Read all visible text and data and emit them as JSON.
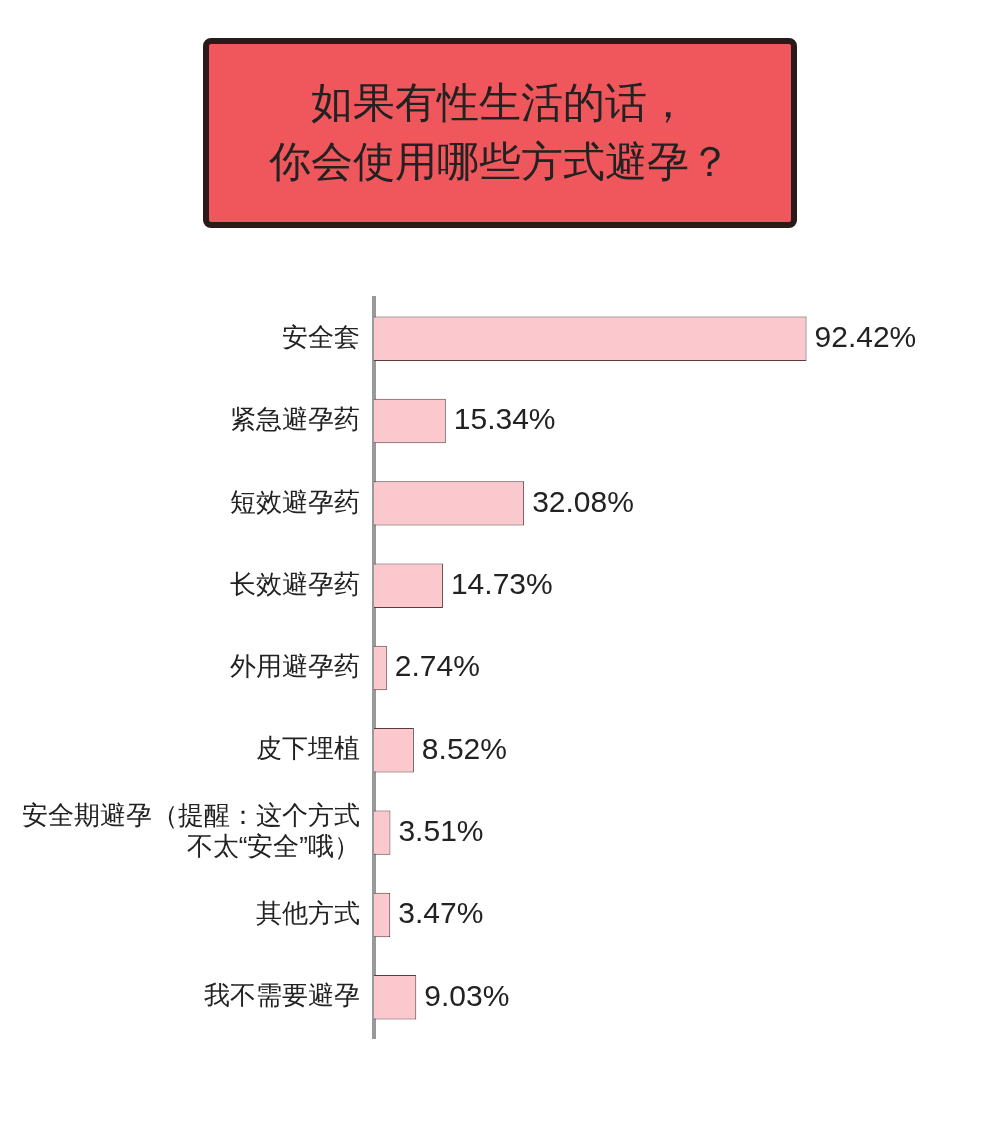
{
  "chart_data": {
    "type": "bar",
    "orientation": "horizontal",
    "title": "如果有性生活的话，你会使用哪些方式避孕？",
    "categories": [
      "安全套",
      "紧急避孕药",
      "短效避孕药",
      "长效避孕药",
      "外用避孕药",
      "皮下埋植",
      "安全期避孕（提醒：这个方式不太“安全”哦）",
      "其他方式",
      "我不需要避孕"
    ],
    "values": [
      92.42,
      15.34,
      32.08,
      14.73,
      2.74,
      8.52,
      3.51,
      3.47,
      9.03
    ],
    "value_labels": [
      "92.42%",
      "15.34%",
      "32.08%",
      "14.73%",
      "2.74%",
      "8.52%",
      "3.51%",
      "3.47%",
      "9.03%"
    ],
    "color": "#fbc9cd",
    "legend": false
  }
}
